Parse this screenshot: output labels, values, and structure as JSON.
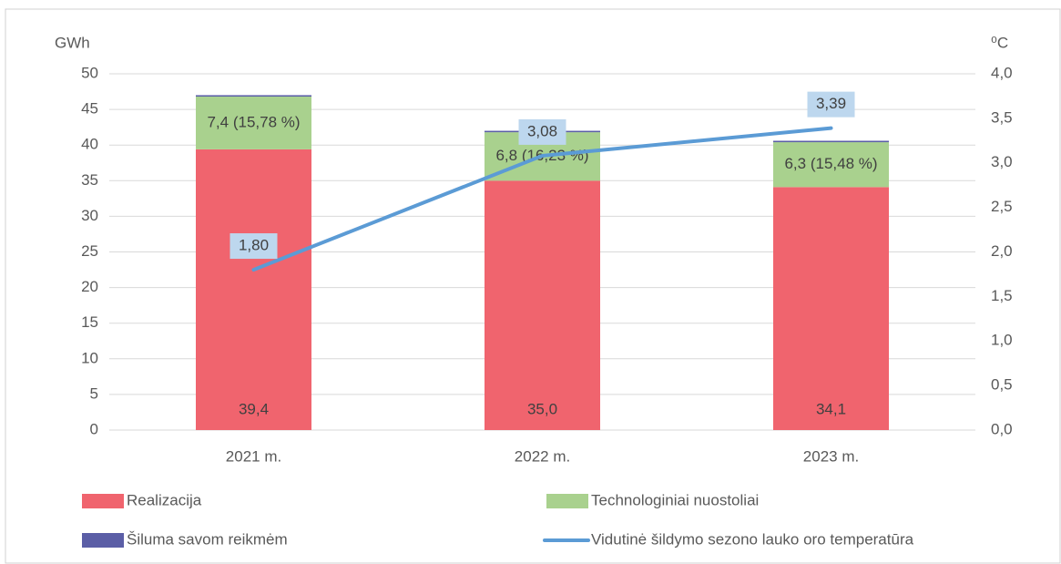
{
  "chart_data": {
    "type": "bar",
    "categories": [
      "2021 m.",
      "2022 m.",
      "2023 m."
    ],
    "ylabel": "GWh",
    "y2label": "⁰C",
    "ylim": [
      0,
      50
    ],
    "yticks": [
      0,
      5,
      10,
      15,
      20,
      25,
      30,
      35,
      40,
      45,
      50
    ],
    "y2lim": [
      0,
      4
    ],
    "y2ticks": [
      {
        "value": 0,
        "label": "0,0"
      },
      {
        "value": 0.5,
        "label": "0,5"
      },
      {
        "value": 1,
        "label": "1,0"
      },
      {
        "value": 1.5,
        "label": "1,5"
      },
      {
        "value": 2,
        "label": "2,0"
      },
      {
        "value": 2.5,
        "label": "2,5"
      },
      {
        "value": 3,
        "label": "3,0"
      },
      {
        "value": 3.5,
        "label": "3,5"
      },
      {
        "value": 4,
        "label": "4,0"
      }
    ],
    "grid": true,
    "stacked": true,
    "series": [
      {
        "name": "Realizacija",
        "color": "#f0646e",
        "values": [
          39.4,
          35.0,
          34.1
        ],
        "value_labels": [
          "39,4",
          "35,0",
          "34,1"
        ]
      },
      {
        "name": "Technologiniai nuostoliai",
        "color": "#a9d18e",
        "values": [
          7.4,
          6.8,
          6.3
        ],
        "value_labels": [
          "7,4 (15,78 %)",
          "6,8 (16,23 %)",
          "6,3 (15,48 %)"
        ]
      },
      {
        "name": "Šiluma savom reikmėm",
        "color": "#5b5ea6",
        "values": [
          0.2,
          0.2,
          0.2
        ]
      },
      {
        "name": "Vidutinė šildymo sezono lauko oro temperatūra",
        "color": "#5b9bd5",
        "type": "line",
        "axis": "y2",
        "values": [
          1.8,
          3.08,
          3.39
        ],
        "value_labels": [
          "1,80",
          "3,08",
          "3,39"
        ]
      }
    ]
  }
}
